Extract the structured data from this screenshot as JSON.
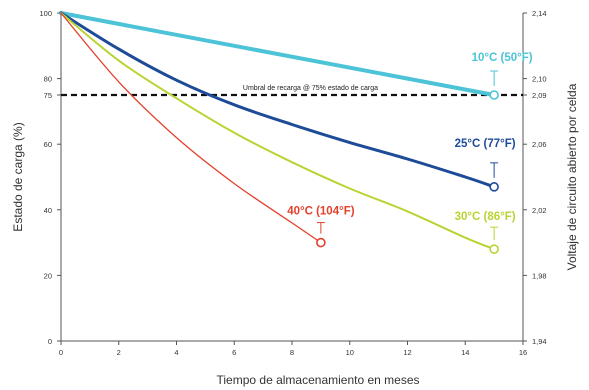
{
  "chart_data": {
    "type": "line",
    "xlabel": "Tiempo de almacenamiento en meses",
    "ylabel": "Estado de carga  (%)",
    "y2label": "Voltaje de circuito abierto por celda",
    "xlim": [
      0,
      16
    ],
    "ylim": [
      0,
      100
    ],
    "x_ticks": [
      0,
      2,
      4,
      6,
      8,
      10,
      12,
      14,
      16
    ],
    "y_ticks": [
      0,
      20,
      40,
      60,
      75,
      80,
      100
    ],
    "y2_ticks": [
      {
        "label": "1,94",
        "at": 0
      },
      {
        "label": "1,98",
        "at": 20
      },
      {
        "label": "2,02",
        "at": 40
      },
      {
        "label": "2,06",
        "at": 60
      },
      {
        "label": "2,09",
        "at": 75
      },
      {
        "label": "2,10",
        "at": 80
      },
      {
        "label": "2,14",
        "at": 100
      }
    ],
    "threshold": {
      "y": 75,
      "label": "Umbral de recarga @ 75% estado de carga"
    },
    "series": [
      {
        "name": "10°C (50°F)",
        "color": "#4cc3d6",
        "x": [
          0,
          15
        ],
        "y": [
          100,
          75
        ],
        "curve": "linear"
      },
      {
        "name": "25°C (77°F)",
        "color": "#1d4b98",
        "x": [
          0,
          2,
          4,
          6,
          8,
          10,
          12,
          14,
          15
        ],
        "y": [
          100,
          89,
          79.5,
          72,
          66,
          60.5,
          55.5,
          50,
          47
        ],
        "curve": "smooth"
      },
      {
        "name": "30°C (86°F)",
        "color": "#b8d432",
        "x": [
          0,
          2,
          4,
          6,
          8,
          10,
          12,
          14,
          15
        ],
        "y": [
          100,
          85.5,
          74,
          63.5,
          54.5,
          46.5,
          39.5,
          31.5,
          28
        ],
        "curve": "smooth"
      },
      {
        "name": "40°C (104°F)",
        "color": "#e4402b",
        "x": [
          0,
          2,
          4,
          6,
          8,
          9
        ],
        "y": [
          100,
          79,
          62,
          48,
          36,
          30
        ],
        "curve": "smooth"
      }
    ],
    "grid": false,
    "legend": "inline labels near line ends"
  }
}
